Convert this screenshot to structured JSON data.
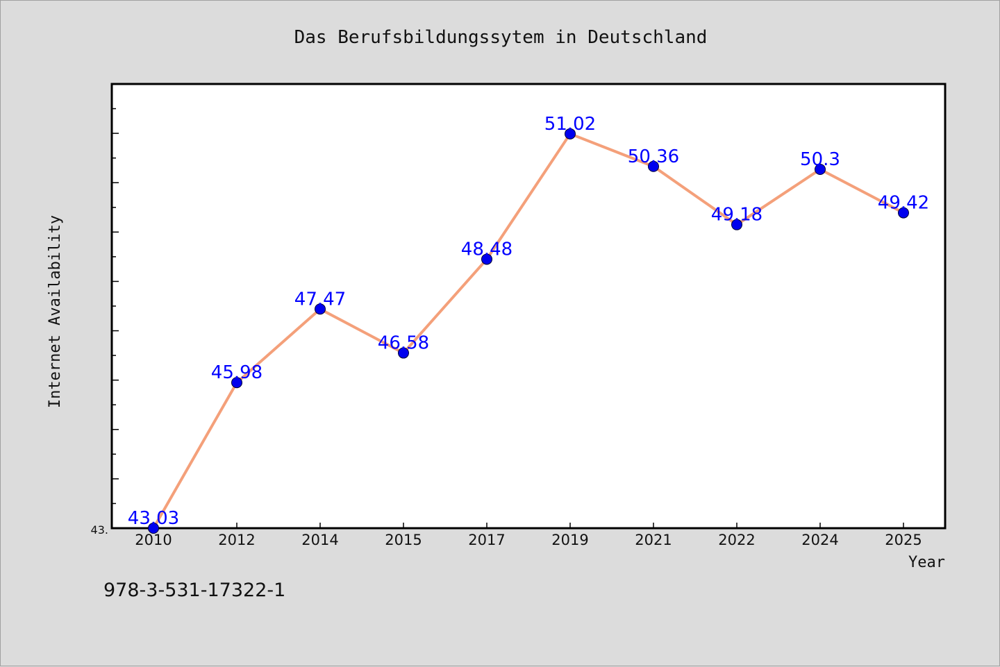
{
  "chart_data": {
    "type": "line",
    "title": "Das Berufsbildungssytem in Deutschland",
    "xlabel": "Year",
    "ylabel": "Internet Availability",
    "categories": [
      "2010",
      "2012",
      "2014",
      "2015",
      "2017",
      "2019",
      "2021",
      "2022",
      "2024",
      "2025"
    ],
    "values": [
      43.03,
      45.98,
      47.47,
      46.58,
      48.48,
      51.02,
      50.36,
      49.18,
      50.3,
      49.42
    ],
    "data_labels": [
      "43.03",
      "45.98",
      "47.47",
      "46.58",
      "48.48",
      "51.02",
      "50.36",
      "49.18",
      "50.3",
      "49.42"
    ],
    "y_tick_label": "43.",
    "ylim": [
      43.03,
      52.03
    ],
    "grid": false,
    "line_color": "#f4a07a",
    "marker_color": "#0000ee",
    "label_color": "#0000ff"
  },
  "footer": {
    "isbn": "978-3-531-17322-1"
  }
}
